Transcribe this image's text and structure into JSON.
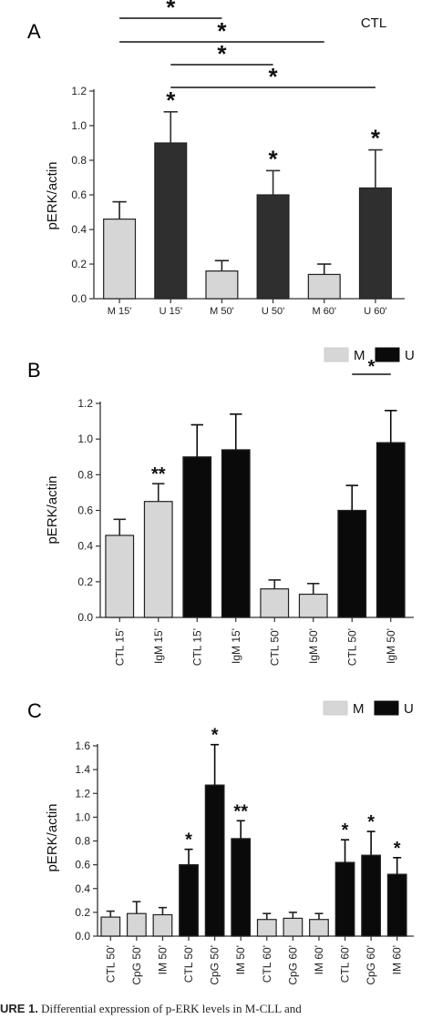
{
  "colors": {
    "light": "#d6d6d6",
    "dark": "#2f2f2f",
    "black": "#0a0a0a",
    "axis": "#333333"
  },
  "caption": {
    "label": "URE 1.",
    "text": "Differential expression of p-ERK levels in M-CLL and"
  },
  "chart_data": [
    {
      "panel": "A",
      "type": "bar",
      "corner_label": "CTL",
      "ylabel": "pERK/actin",
      "ylim": [
        0,
        1.2
      ],
      "yticks": [
        "0.0",
        "0.2",
        "0.4",
        "0.6",
        "0.8",
        "1.0",
        "1.2"
      ],
      "categories": [
        "M 15'",
        "U 15'",
        "M 50'",
        "U 50'",
        "M 60'",
        "U 60'"
      ],
      "values": [
        0.46,
        0.9,
        0.16,
        0.6,
        0.14,
        0.64
      ],
      "errors": [
        0.1,
        0.18,
        0.06,
        0.14,
        0.06,
        0.22
      ],
      "colors": [
        "light",
        "dark",
        "light",
        "dark",
        "light",
        "dark"
      ],
      "stars": [
        "",
        "*",
        "",
        "*",
        "",
        "*"
      ],
      "brackets": [
        {
          "from": 0,
          "to": 2,
          "label": "*"
        },
        {
          "from": 0,
          "to": 4,
          "label": "*"
        },
        {
          "from": 1,
          "to": 3,
          "label": "*"
        },
        {
          "from": 1,
          "to": 5,
          "label": "*"
        }
      ]
    },
    {
      "panel": "B",
      "type": "bar",
      "ylabel": "pERK/actin",
      "ylim": [
        0,
        1.2
      ],
      "yticks": [
        "0.0",
        "0.2",
        "0.4",
        "0.6",
        "0.8",
        "1.0",
        "1.2"
      ],
      "legend": [
        {
          "label": "M",
          "color": "light"
        },
        {
          "label": "U",
          "color": "black"
        }
      ],
      "categories": [
        "CTL 15'",
        "IgM 15'",
        "CTL 15'",
        "IgM 15'",
        "CTL 50'",
        "IgM 50'",
        "CTL 50'",
        "IgM 50'"
      ],
      "values": [
        0.46,
        0.65,
        0.9,
        0.94,
        0.16,
        0.13,
        0.6,
        0.98
      ],
      "errors": [
        0.09,
        0.1,
        0.18,
        0.2,
        0.05,
        0.06,
        0.14,
        0.18
      ],
      "colors": [
        "light",
        "light",
        "black",
        "black",
        "light",
        "light",
        "black",
        "black"
      ],
      "stars": [
        "",
        "**",
        "",
        "",
        "",
        "",
        "",
        ""
      ],
      "brackets": [
        {
          "from": 6,
          "to": 7,
          "label": "*"
        }
      ]
    },
    {
      "panel": "C",
      "type": "bar",
      "ylabel": "pERK/actin",
      "ylim": [
        0,
        1.6
      ],
      "yticks": [
        "0.0",
        "0.2",
        "0.4",
        "0.6",
        "0.8",
        "1.0",
        "1.2",
        "1.4",
        "1.6"
      ],
      "legend": [
        {
          "label": "M",
          "color": "light"
        },
        {
          "label": "U",
          "color": "black"
        }
      ],
      "categories": [
        "CTL 50'",
        "CpG 50'",
        "IM 50'",
        "CTL 50'",
        "CpG 50'",
        "IM 50'",
        "CTL 60'",
        "CpG 60'",
        "IM 60'",
        "CTL 60'",
        "CpG 60'",
        "IM 60'"
      ],
      "values": [
        0.16,
        0.19,
        0.18,
        0.6,
        1.27,
        0.82,
        0.14,
        0.15,
        0.14,
        0.62,
        0.68,
        0.52
      ],
      "errors": [
        0.05,
        0.1,
        0.06,
        0.13,
        0.34,
        0.15,
        0.05,
        0.05,
        0.05,
        0.19,
        0.2,
        0.14
      ],
      "colors": [
        "light",
        "light",
        "light",
        "black",
        "black",
        "black",
        "light",
        "light",
        "light",
        "black",
        "black",
        "black"
      ],
      "stars": [
        "",
        "",
        "",
        "*",
        "*",
        "**",
        "",
        "",
        "",
        "*",
        "*",
        "*"
      ],
      "brackets": []
    }
  ]
}
